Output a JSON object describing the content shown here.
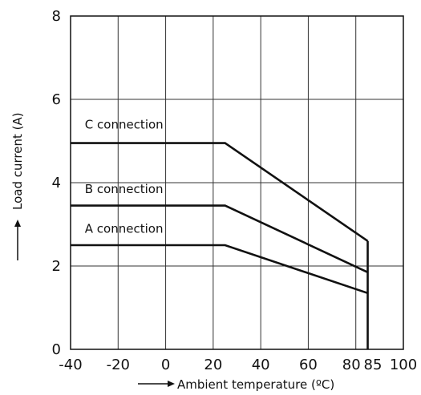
{
  "chart_data": {
    "type": "line",
    "xlabel": "Ambient temperature (ºC)",
    "ylabel": "Load current (A)",
    "xlim": [
      -40,
      100
    ],
    "ylim": [
      0,
      8
    ],
    "x_ticks": [
      {
        "value": -40,
        "label": "-40"
      },
      {
        "value": -20,
        "label": "-20"
      },
      {
        "value": 0,
        "label": "0"
      },
      {
        "value": 20,
        "label": "20"
      },
      {
        "value": 40,
        "label": "40"
      },
      {
        "value": 60,
        "label": "60"
      },
      {
        "value": 80,
        "label": "80"
      },
      {
        "value": 85,
        "label": "85"
      },
      {
        "value": 100,
        "label": "100"
      }
    ],
    "y_ticks": [
      {
        "value": 0,
        "label": "0"
      },
      {
        "value": 2,
        "label": "2"
      },
      {
        "value": 4,
        "label": "4"
      },
      {
        "value": 6,
        "label": "6"
      },
      {
        "value": 8,
        "label": "8"
      }
    ],
    "grid": true,
    "series": [
      {
        "name": "C connection",
        "points": [
          [
            -40,
            4.95
          ],
          [
            25,
            4.95
          ],
          [
            85,
            2.6
          ]
        ],
        "label_x": -34,
        "label_y": 5.3
      },
      {
        "name": "B connection",
        "points": [
          [
            -40,
            3.45
          ],
          [
            25,
            3.45
          ],
          [
            85,
            1.85
          ]
        ],
        "label_x": -34,
        "label_y": 3.75
      },
      {
        "name": "A connection",
        "points": [
          [
            -40,
            2.5
          ],
          [
            25,
            2.5
          ],
          [
            85,
            1.35
          ]
        ],
        "label_x": -34,
        "label_y": 2.8
      }
    ],
    "cutoff": {
      "x": 85,
      "y_from": 0,
      "y_to": 2.6
    }
  }
}
